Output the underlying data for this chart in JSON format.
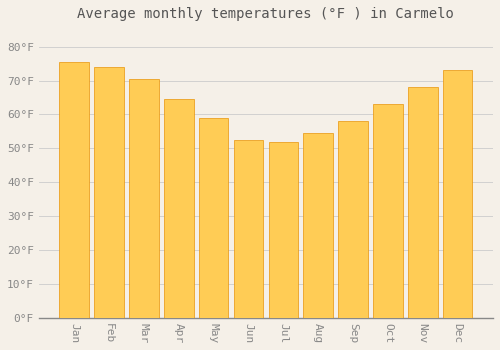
{
  "months": [
    "Jan",
    "Feb",
    "Mar",
    "Apr",
    "May",
    "Jun",
    "Jul",
    "Aug",
    "Sep",
    "Oct",
    "Nov",
    "Dec"
  ],
  "values": [
    75.5,
    74.0,
    70.5,
    64.5,
    59.0,
    52.5,
    52.0,
    54.5,
    58.0,
    63.0,
    68.0,
    73.0
  ],
  "bar_color_top": "#F5A623",
  "bar_color_bottom": "#FFCC55",
  "bar_edge_color": "#E8950A",
  "background_color": "#F5F0E8",
  "plot_bg_color": "#F5F0E8",
  "grid_color": "#CCCCCC",
  "title": "Average monthly temperatures (°F ) in Carmelo",
  "title_fontsize": 10,
  "tick_label_color": "#888888",
  "tick_fontsize": 8,
  "ylim": [
    0,
    86
  ],
  "yticks": [
    0,
    10,
    20,
    30,
    40,
    50,
    60,
    70,
    80
  ],
  "ytick_labels": [
    "0°F",
    "10°F",
    "20°F",
    "30°F",
    "40°F",
    "50°F",
    "60°F",
    "70°F",
    "80°F"
  ]
}
